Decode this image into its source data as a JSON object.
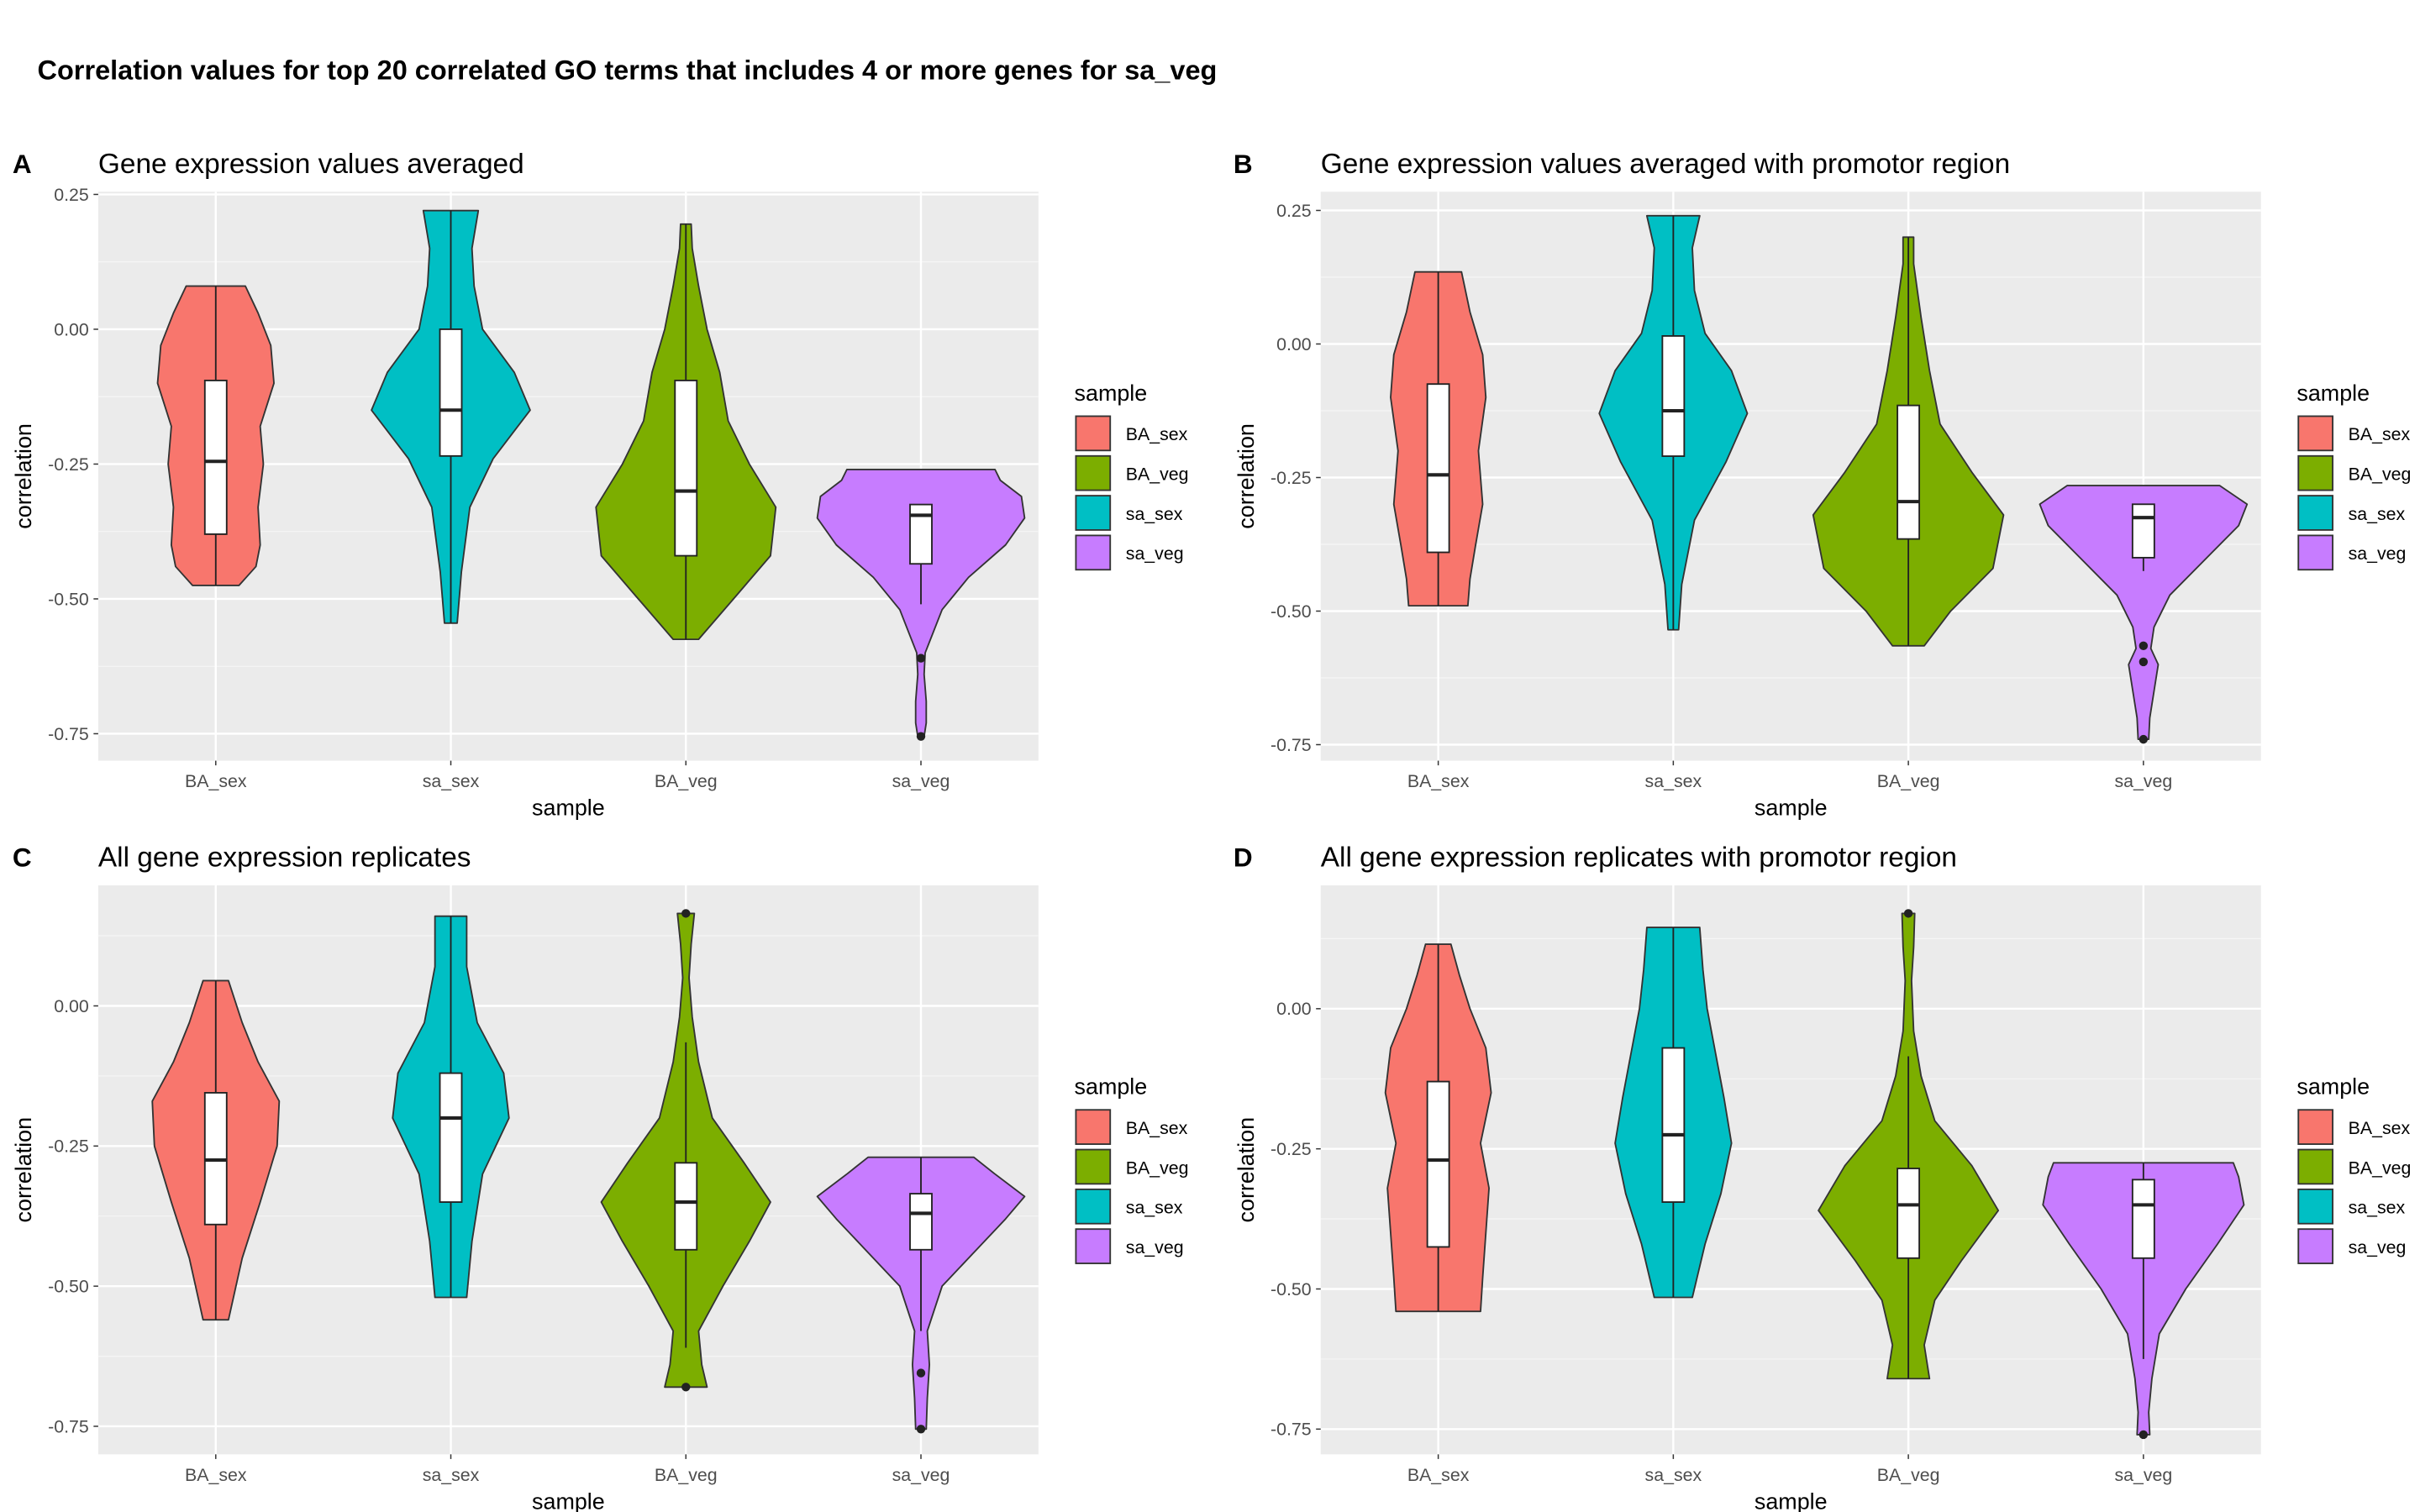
{
  "title": "Correlation values for top 20 correlated GO terms that includes 4 or more genes for sa_veg",
  "legend": {
    "title": "sample",
    "items": [
      {
        "label": "BA_sex",
        "color": "#F8766D"
      },
      {
        "label": "BA_veg",
        "color": "#7CAE00"
      },
      {
        "label": "sa_sex",
        "color": "#00BFC4"
      },
      {
        "label": "sa_veg",
        "color": "#C77CFF"
      }
    ]
  },
  "chart_data": [
    {
      "type": "violin",
      "panel_tag": "A",
      "title": "Gene expression values averaged",
      "xlabel": "sample",
      "ylabel": "correlation",
      "categories": [
        "BA_sex",
        "sa_sex",
        "BA_veg",
        "sa_veg"
      ],
      "ylim": [
        -0.8,
        0.255
      ],
      "yticks": [
        0.25,
        0.0,
        -0.25,
        -0.5,
        -0.75
      ],
      "ytick_labels": [
        "0.25",
        "0.00",
        "-0.25",
        "-0.50",
        "-0.75"
      ],
      "series": [
        {
          "name": "BA_sex",
          "color": "#F8766D",
          "min": -0.475,
          "max": 0.08,
          "q1": -0.38,
          "median": -0.245,
          "q3": -0.095,
          "whisker_low": -0.475,
          "whisker_high": 0.08,
          "outliers": [],
          "profile": [
            [
              -0.475,
              0.22
            ],
            [
              -0.44,
              0.38
            ],
            [
              -0.4,
              0.42
            ],
            [
              -0.33,
              0.4
            ],
            [
              -0.25,
              0.45
            ],
            [
              -0.18,
              0.42
            ],
            [
              -0.1,
              0.55
            ],
            [
              -0.03,
              0.52
            ],
            [
              0.03,
              0.4
            ],
            [
              0.08,
              0.28
            ]
          ]
        },
        {
          "name": "sa_sex",
          "color": "#00BFC4",
          "min": -0.545,
          "max": 0.22,
          "q1": -0.235,
          "median": -0.15,
          "q3": 0.0,
          "whisker_low": -0.545,
          "whisker_high": 0.22,
          "outliers": [],
          "profile": [
            [
              -0.545,
              0.06
            ],
            [
              -0.45,
              0.1
            ],
            [
              -0.33,
              0.18
            ],
            [
              -0.24,
              0.4
            ],
            [
              -0.15,
              0.75
            ],
            [
              -0.08,
              0.6
            ],
            [
              0.0,
              0.3
            ],
            [
              0.08,
              0.22
            ],
            [
              0.15,
              0.2
            ],
            [
              0.22,
              0.26
            ]
          ]
        },
        {
          "name": "BA_veg",
          "color": "#7CAE00",
          "min": -0.575,
          "max": 0.195,
          "q1": -0.42,
          "median": -0.3,
          "q3": -0.095,
          "whisker_low": -0.575,
          "whisker_high": 0.195,
          "outliers": [],
          "profile": [
            [
              -0.575,
              0.12
            ],
            [
              -0.5,
              0.45
            ],
            [
              -0.42,
              0.8
            ],
            [
              -0.33,
              0.85
            ],
            [
              -0.25,
              0.6
            ],
            [
              -0.17,
              0.4
            ],
            [
              -0.08,
              0.32
            ],
            [
              0.0,
              0.2
            ],
            [
              0.08,
              0.12
            ],
            [
              0.15,
              0.06
            ],
            [
              0.195,
              0.05
            ]
          ]
        },
        {
          "name": "sa_veg",
          "color": "#C77CFF",
          "min": -0.755,
          "max": -0.26,
          "q1": -0.435,
          "median": -0.345,
          "q3": -0.325,
          "whisker_low": -0.51,
          "whisker_high": -0.325,
          "outliers": [
            -0.61,
            -0.755
          ],
          "profile": [
            [
              -0.755,
              0.03
            ],
            [
              -0.73,
              0.05
            ],
            [
              -0.69,
              0.05
            ],
            [
              -0.64,
              0.03
            ],
            [
              -0.6,
              0.04
            ],
            [
              -0.57,
              0.1
            ],
            [
              -0.52,
              0.2
            ],
            [
              -0.46,
              0.45
            ],
            [
              -0.4,
              0.8
            ],
            [
              -0.35,
              0.98
            ],
            [
              -0.31,
              0.95
            ],
            [
              -0.28,
              0.75
            ],
            [
              -0.26,
              0.7
            ]
          ]
        }
      ]
    },
    {
      "type": "violin",
      "panel_tag": "B",
      "title": "Gene expression values averaged with promotor region",
      "xlabel": "sample",
      "ylabel": "correlation",
      "categories": [
        "BA_sex",
        "sa_sex",
        "BA_veg",
        "sa_veg"
      ],
      "ylim": [
        -0.78,
        0.285
      ],
      "yticks": [
        0.25,
        0.0,
        -0.25,
        -0.5,
        -0.75
      ],
      "ytick_labels": [
        "0.25",
        "0.00",
        "-0.25",
        "-0.50",
        "-0.75"
      ],
      "series": [
        {
          "name": "BA_sex",
          "color": "#F8766D",
          "min": -0.49,
          "max": 0.135,
          "q1": -0.39,
          "median": -0.245,
          "q3": -0.075,
          "whisker_low": -0.49,
          "whisker_high": 0.135,
          "outliers": [],
          "profile": [
            [
              -0.49,
              0.28
            ],
            [
              -0.44,
              0.3
            ],
            [
              -0.38,
              0.35
            ],
            [
              -0.3,
              0.42
            ],
            [
              -0.2,
              0.38
            ],
            [
              -0.1,
              0.45
            ],
            [
              -0.02,
              0.42
            ],
            [
              0.06,
              0.3
            ],
            [
              0.135,
              0.22
            ]
          ]
        },
        {
          "name": "sa_sex",
          "color": "#00BFC4",
          "min": -0.535,
          "max": 0.24,
          "q1": -0.21,
          "median": -0.125,
          "q3": 0.015,
          "whisker_low": -0.535,
          "whisker_high": 0.24,
          "outliers": [],
          "profile": [
            [
              -0.535,
              0.05
            ],
            [
              -0.45,
              0.08
            ],
            [
              -0.33,
              0.2
            ],
            [
              -0.22,
              0.5
            ],
            [
              -0.13,
              0.7
            ],
            [
              -0.05,
              0.55
            ],
            [
              0.02,
              0.3
            ],
            [
              0.1,
              0.2
            ],
            [
              0.18,
              0.18
            ],
            [
              0.24,
              0.25
            ]
          ]
        },
        {
          "name": "BA_veg",
          "color": "#7CAE00",
          "min": -0.565,
          "max": 0.2,
          "q1": -0.365,
          "median": -0.295,
          "q3": -0.115,
          "whisker_low": -0.565,
          "whisker_high": 0.2,
          "outliers": [],
          "profile": [
            [
              -0.565,
              0.15
            ],
            [
              -0.5,
              0.4
            ],
            [
              -0.42,
              0.8
            ],
            [
              -0.32,
              0.9
            ],
            [
              -0.24,
              0.6
            ],
            [
              -0.15,
              0.3
            ],
            [
              -0.05,
              0.2
            ],
            [
              0.05,
              0.12
            ],
            [
              0.15,
              0.05
            ],
            [
              0.2,
              0.05
            ]
          ]
        },
        {
          "name": "sa_veg",
          "color": "#C77CFF",
          "min": -0.74,
          "max": -0.265,
          "q1": -0.4,
          "median": -0.325,
          "q3": -0.3,
          "whisker_low": -0.425,
          "whisker_high": -0.3,
          "outliers": [
            -0.565,
            -0.595,
            -0.74
          ],
          "profile": [
            [
              -0.74,
              0.05
            ],
            [
              -0.7,
              0.06
            ],
            [
              -0.65,
              0.1
            ],
            [
              -0.6,
              0.14
            ],
            [
              -0.57,
              0.07
            ],
            [
              -0.53,
              0.1
            ],
            [
              -0.47,
              0.25
            ],
            [
              -0.4,
              0.6
            ],
            [
              -0.34,
              0.9
            ],
            [
              -0.3,
              0.98
            ],
            [
              -0.265,
              0.72
            ]
          ]
        }
      ]
    },
    {
      "type": "violin",
      "panel_tag": "C",
      "title": "All gene expression replicates",
      "xlabel": "sample",
      "ylabel": "correlation",
      "categories": [
        "BA_sex",
        "sa_sex",
        "BA_veg",
        "sa_veg"
      ],
      "ylim": [
        -0.8,
        0.215
      ],
      "yticks": [
        0.0,
        -0.25,
        -0.5,
        -0.75
      ],
      "ytick_labels": [
        "0.00",
        "-0.25",
        "-0.50",
        "-0.75"
      ],
      "series": [
        {
          "name": "BA_sex",
          "color": "#F8766D",
          "min": -0.56,
          "max": 0.045,
          "q1": -0.39,
          "median": -0.275,
          "q3": -0.155,
          "whisker_low": -0.56,
          "whisker_high": 0.045,
          "outliers": [],
          "profile": [
            [
              -0.56,
              0.12
            ],
            [
              -0.45,
              0.25
            ],
            [
              -0.35,
              0.42
            ],
            [
              -0.25,
              0.58
            ],
            [
              -0.17,
              0.6
            ],
            [
              -0.1,
              0.4
            ],
            [
              -0.03,
              0.25
            ],
            [
              0.045,
              0.12
            ]
          ]
        },
        {
          "name": "sa_sex",
          "color": "#00BFC4",
          "min": -0.52,
          "max": 0.16,
          "q1": -0.35,
          "median": -0.2,
          "q3": -0.12,
          "whisker_low": -0.52,
          "whisker_high": 0.16,
          "outliers": [],
          "profile": [
            [
              -0.52,
              0.15
            ],
            [
              -0.42,
              0.2
            ],
            [
              -0.3,
              0.3
            ],
            [
              -0.2,
              0.55
            ],
            [
              -0.12,
              0.5
            ],
            [
              -0.03,
              0.25
            ],
            [
              0.07,
              0.15
            ],
            [
              0.16,
              0.15
            ]
          ]
        },
        {
          "name": "BA_veg",
          "color": "#7CAE00",
          "min": -0.68,
          "max": 0.165,
          "q1": -0.435,
          "median": -0.35,
          "q3": -0.28,
          "whisker_low": -0.61,
          "whisker_high": -0.065,
          "outliers": [
            -0.68,
            0.165
          ],
          "profile": [
            [
              -0.68,
              0.2
            ],
            [
              -0.64,
              0.15
            ],
            [
              -0.58,
              0.12
            ],
            [
              -0.5,
              0.35
            ],
            [
              -0.42,
              0.6
            ],
            [
              -0.35,
              0.8
            ],
            [
              -0.28,
              0.55
            ],
            [
              -0.2,
              0.25
            ],
            [
              -0.1,
              0.12
            ],
            [
              -0.02,
              0.06
            ],
            [
              0.05,
              0.03
            ],
            [
              0.11,
              0.05
            ],
            [
              0.165,
              0.08
            ]
          ]
        },
        {
          "name": "sa_veg",
          "color": "#C77CFF",
          "min": -0.755,
          "max": -0.27,
          "q1": -0.435,
          "median": -0.37,
          "q3": -0.335,
          "whisker_low": -0.58,
          "whisker_high": -0.27,
          "outliers": [
            -0.655,
            -0.755
          ],
          "profile": [
            [
              -0.755,
              0.05
            ],
            [
              -0.7,
              0.06
            ],
            [
              -0.64,
              0.08
            ],
            [
              -0.58,
              0.06
            ],
            [
              -0.5,
              0.2
            ],
            [
              -0.44,
              0.5
            ],
            [
              -0.38,
              0.8
            ],
            [
              -0.34,
              0.98
            ],
            [
              -0.3,
              0.7
            ],
            [
              -0.27,
              0.5
            ]
          ]
        }
      ]
    },
    {
      "type": "violin",
      "panel_tag": "D",
      "title": "All gene expression replicates with promotor region",
      "xlabel": "sample",
      "ylabel": "correlation",
      "categories": [
        "BA_sex",
        "sa_sex",
        "BA_veg",
        "sa_veg"
      ],
      "ylim": [
        -0.795,
        0.22
      ],
      "yticks": [
        0.0,
        -0.25,
        -0.5,
        -0.75
      ],
      "ytick_labels": [
        "0.00",
        "-0.25",
        "-0.50",
        "-0.75"
      ],
      "series": [
        {
          "name": "BA_sex",
          "color": "#F8766D",
          "min": -0.54,
          "max": 0.115,
          "q1": -0.425,
          "median": -0.27,
          "q3": -0.13,
          "whisker_low": -0.54,
          "whisker_high": 0.115,
          "outliers": [],
          "profile": [
            [
              -0.54,
              0.4
            ],
            [
              -0.48,
              0.42
            ],
            [
              -0.4,
              0.45
            ],
            [
              -0.32,
              0.48
            ],
            [
              -0.24,
              0.4
            ],
            [
              -0.15,
              0.5
            ],
            [
              -0.07,
              0.45
            ],
            [
              0.0,
              0.3
            ],
            [
              0.06,
              0.2
            ],
            [
              0.115,
              0.12
            ]
          ]
        },
        {
          "name": "sa_sex",
          "color": "#00BFC4",
          "min": -0.515,
          "max": 0.145,
          "q1": -0.345,
          "median": -0.225,
          "q3": -0.07,
          "whisker_low": -0.515,
          "whisker_high": 0.145,
          "outliers": [],
          "profile": [
            [
              -0.515,
              0.18
            ],
            [
              -0.42,
              0.3
            ],
            [
              -0.33,
              0.45
            ],
            [
              -0.24,
              0.55
            ],
            [
              -0.16,
              0.48
            ],
            [
              -0.08,
              0.4
            ],
            [
              0.0,
              0.32
            ],
            [
              0.07,
              0.28
            ],
            [
              0.145,
              0.25
            ]
          ]
        },
        {
          "name": "BA_veg",
          "color": "#7CAE00",
          "min": -0.66,
          "max": 0.17,
          "q1": -0.445,
          "median": -0.35,
          "q3": -0.285,
          "whisker_low": -0.66,
          "whisker_high": -0.085,
          "outliers": [
            0.17
          ],
          "profile": [
            [
              -0.66,
              0.2
            ],
            [
              -0.6,
              0.15
            ],
            [
              -0.52,
              0.25
            ],
            [
              -0.45,
              0.5
            ],
            [
              -0.36,
              0.85
            ],
            [
              -0.28,
              0.6
            ],
            [
              -0.2,
              0.25
            ],
            [
              -0.12,
              0.12
            ],
            [
              -0.04,
              0.05
            ],
            [
              0.05,
              0.03
            ],
            [
              0.11,
              0.05
            ],
            [
              0.17,
              0.06
            ]
          ]
        },
        {
          "name": "sa_veg",
          "color": "#C77CFF",
          "min": -0.76,
          "max": -0.275,
          "q1": -0.445,
          "median": -0.35,
          "q3": -0.305,
          "whisker_low": -0.625,
          "whisker_high": -0.275,
          "outliers": [
            -0.76
          ],
          "profile": [
            [
              -0.76,
              0.06
            ],
            [
              -0.72,
              0.05
            ],
            [
              -0.66,
              0.08
            ],
            [
              -0.58,
              0.15
            ],
            [
              -0.5,
              0.4
            ],
            [
              -0.42,
              0.7
            ],
            [
              -0.35,
              0.95
            ],
            [
              -0.3,
              0.9
            ],
            [
              -0.275,
              0.85
            ]
          ]
        }
      ]
    }
  ]
}
